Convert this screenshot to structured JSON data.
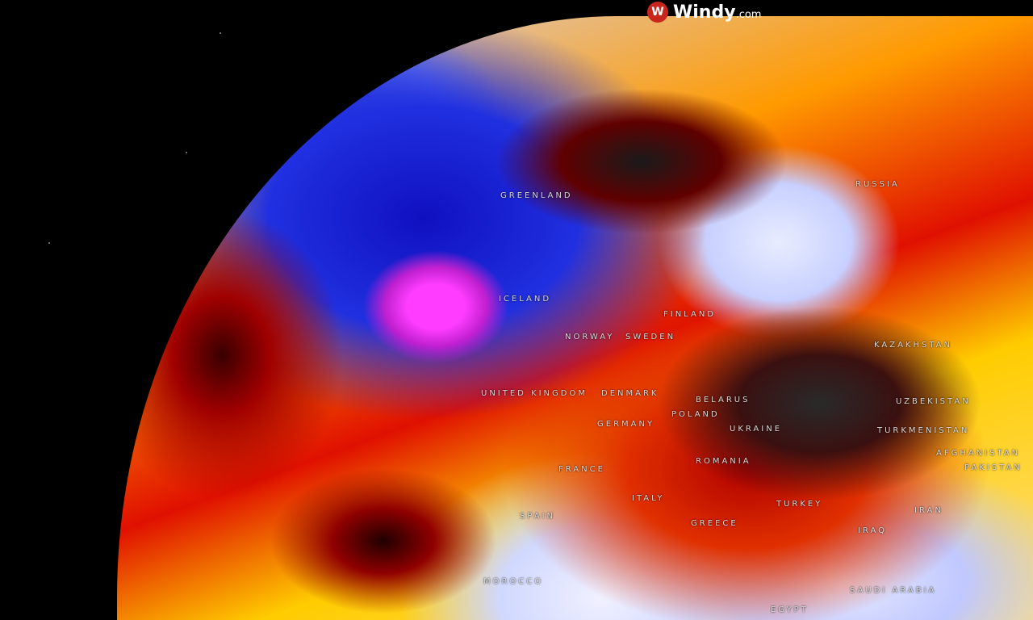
{
  "brand": {
    "name": "Windy",
    "suffix": ".com",
    "icon": "windy-logo-icon",
    "accent": "#c8251d"
  },
  "labels": [
    {
      "id": "greenland",
      "text": "GREENLAND"
    },
    {
      "id": "russia",
      "text": "RUSSIA"
    },
    {
      "id": "iceland",
      "text": "ICELAND"
    },
    {
      "id": "finland",
      "text": "FINLAND"
    },
    {
      "id": "norway",
      "text": "NORWAY"
    },
    {
      "id": "sweden",
      "text": "SWEDEN"
    },
    {
      "id": "united-kingdom",
      "text": "UNITED KINGDOM"
    },
    {
      "id": "denmark",
      "text": "DENMARK"
    },
    {
      "id": "belarus",
      "text": "BELARUS"
    },
    {
      "id": "poland",
      "text": "POLAND"
    },
    {
      "id": "germany",
      "text": "GERMANY"
    },
    {
      "id": "ukraine",
      "text": "UKRAINE"
    },
    {
      "id": "kazakhstan",
      "text": "KAZAKHSTAN"
    },
    {
      "id": "uzbekistan",
      "text": "UZBEKISTAN"
    },
    {
      "id": "turkmenistan",
      "text": "TURKMENISTAN"
    },
    {
      "id": "afghanistan",
      "text": "AFGHANISTAN"
    },
    {
      "id": "pakistan",
      "text": "PAKISTAN"
    },
    {
      "id": "france",
      "text": "FRANCE"
    },
    {
      "id": "romania",
      "text": "ROMANIA"
    },
    {
      "id": "italy",
      "text": "ITALY"
    },
    {
      "id": "spain",
      "text": "SPAIN"
    },
    {
      "id": "greece",
      "text": "GREECE"
    },
    {
      "id": "turkey",
      "text": "TURKEY"
    },
    {
      "id": "iran",
      "text": "IRAN"
    },
    {
      "id": "iraq",
      "text": "IRAQ"
    },
    {
      "id": "morocco",
      "text": "MOROCCO"
    },
    {
      "id": "saudi-arabia",
      "text": "SAUDI ARABIA"
    },
    {
      "id": "egypt",
      "text": "EGYPT"
    }
  ]
}
